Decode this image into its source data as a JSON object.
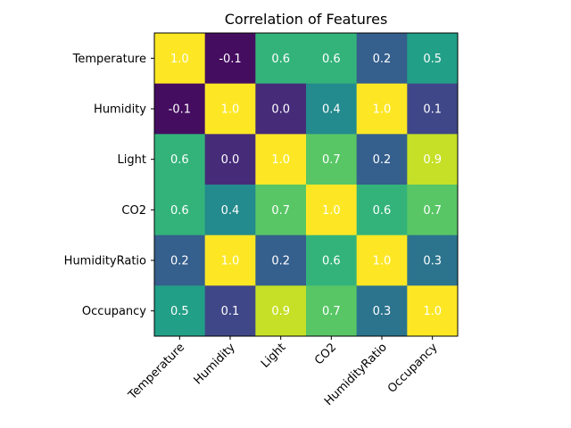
{
  "chart_data": {
    "type": "heatmap",
    "title": "Correlation of Features",
    "xlabel": "",
    "ylabel": "",
    "x_categories": [
      "Temperature",
      "Humidity",
      "Light",
      "CO2",
      "HumidityRatio",
      "Occupancy"
    ],
    "y_categories": [
      "Temperature",
      "Humidity",
      "Light",
      "CO2",
      "HumidityRatio",
      "Occupancy"
    ],
    "values": [
      [
        1.0,
        -0.1,
        0.6,
        0.6,
        0.2,
        0.5
      ],
      [
        -0.1,
        1.0,
        0.0,
        0.4,
        1.0,
        0.1
      ],
      [
        0.6,
        0.0,
        1.0,
        0.7,
        0.2,
        0.9
      ],
      [
        0.6,
        0.4,
        0.7,
        1.0,
        0.6,
        0.7
      ],
      [
        0.2,
        1.0,
        0.2,
        0.6,
        1.0,
        0.3
      ],
      [
        0.5,
        0.1,
        0.9,
        0.7,
        0.3,
        1.0
      ]
    ],
    "value_format": "one-decimal",
    "colormap": "viridis",
    "value_range": [
      -0.14,
      1.0
    ],
    "grid": false,
    "legend": "none",
    "x_tick_rotation_deg": 45,
    "cell_label_color": "#ffffff"
  }
}
